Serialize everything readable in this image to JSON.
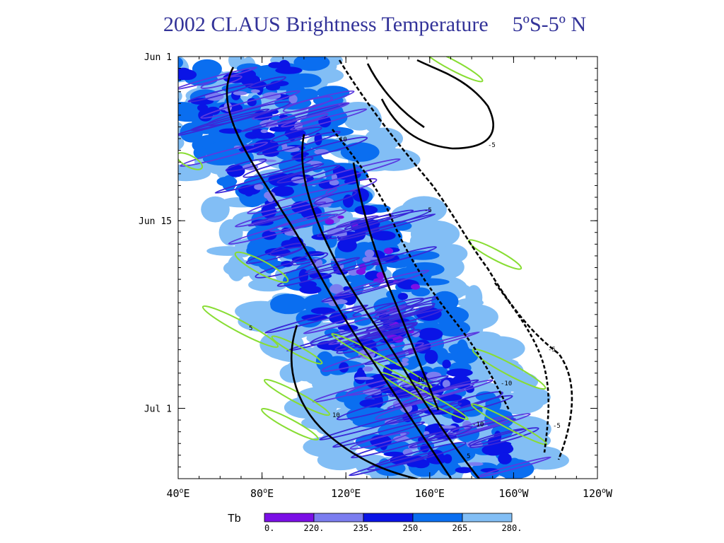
{
  "slide": {
    "title": "2002 CLAUS Brightness Temperature",
    "subtitle": "5ºS-5º N"
  },
  "chart_data": {
    "type": "heatmap",
    "title": "2002 CLAUS Brightness Temperature 5ºS-5º N",
    "xlabel": "",
    "ylabel": "",
    "x_ticks": [
      {
        "label": "40",
        "hemi": "E",
        "lon": 40
      },
      {
        "label": "80",
        "hemi": "E",
        "lon": 80
      },
      {
        "label": "120",
        "hemi": "E",
        "lon": 120
      },
      {
        "label": "160",
        "hemi": "E",
        "lon": 160
      },
      {
        "label": "160",
        "hemi": "W",
        "lon": 200
      },
      {
        "label": "120",
        "hemi": "W",
        "lon": 240
      }
    ],
    "xlim": [
      40,
      240
    ],
    "y_ticks": [
      {
        "label": "Jun 1",
        "day": 1
      },
      {
        "label": "Jun 15",
        "day": 15
      },
      {
        "label": "Jul 1",
        "day": 31
      }
    ],
    "ylim": [
      1,
      37
    ],
    "legend": {
      "title": "Tb",
      "labels": [
        "0.",
        "220.",
        "235.",
        "250.",
        "265.",
        "280."
      ],
      "colors": [
        "#7b0fe6",
        "#7b7df0",
        "#0a14e6",
        "#0a6ef0",
        "#82bef5"
      ]
    },
    "contour_labels": {
      "black": [
        "-5",
        "-10",
        "5",
        "10"
      ],
      "green": [
        "5",
        "10"
      ]
    },
    "grid": false
  },
  "colors": {
    "title": "#333399",
    "black_contour": "#000000",
    "green_contour": "#88dd33"
  }
}
